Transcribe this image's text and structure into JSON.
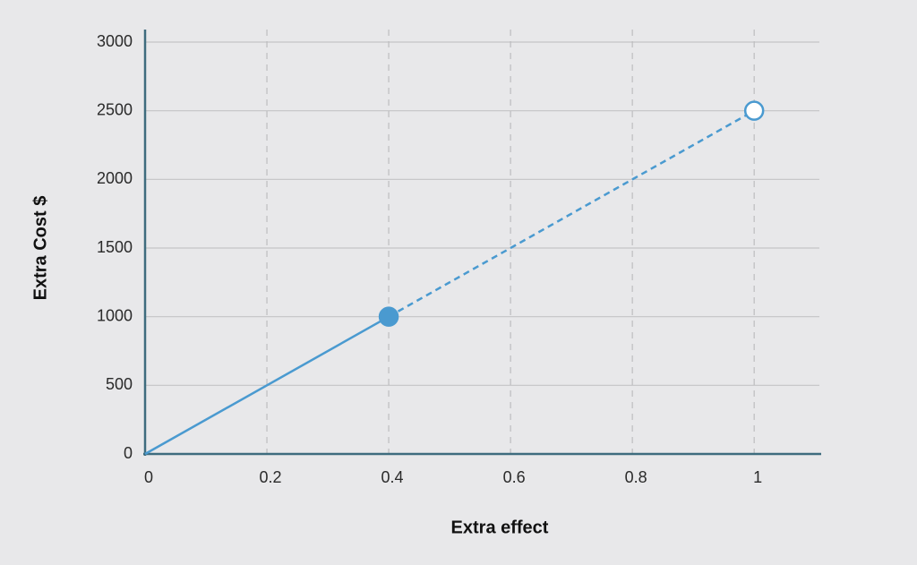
{
  "chart_data": {
    "type": "line",
    "x_label": "Extra effect",
    "y_label": "Extra Cost $",
    "xlim": [
      0,
      1.11
    ],
    "ylim": [
      0,
      3000
    ],
    "xticks": [
      0,
      0.2,
      0.4,
      0.6,
      0.8,
      1
    ],
    "yticks": [
      0,
      500,
      1000,
      1500,
      2000,
      2500,
      3000
    ],
    "grid": true,
    "color": "#4a9ad0",
    "series": [
      {
        "x": [
          0,
          0.4
        ],
        "values": [
          0,
          1000
        ],
        "dashed": false
      },
      {
        "x": [
          0.4,
          1
        ],
        "values": [
          1000,
          2500
        ],
        "dashed": true
      }
    ],
    "markers": {
      "x": [
        0.4,
        1
      ],
      "values": [
        1000,
        2500
      ],
      "filled": [
        true,
        false
      ]
    }
  }
}
